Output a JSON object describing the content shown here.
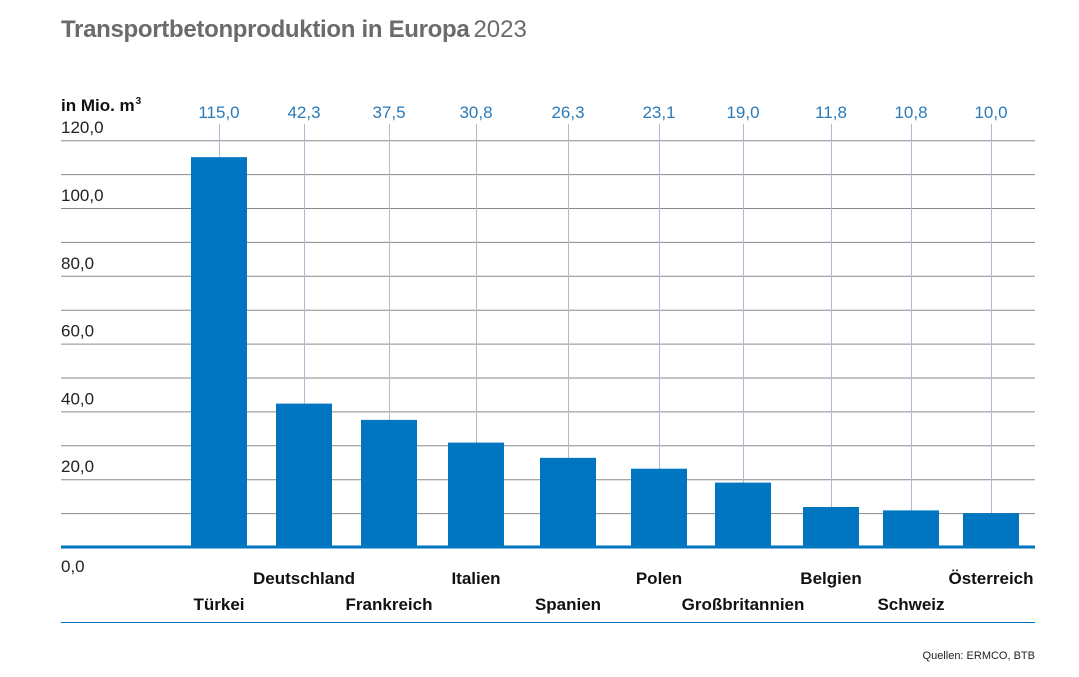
{
  "title": {
    "main": "Transportbetonproduktion in Europa",
    "year": "2023"
  },
  "unit_label": "in Mio. m",
  "unit_superscript": "3",
  "source": "Quellen: ERMCO, BTB",
  "colors": {
    "bar": "#0076c0",
    "value_label": "#2a7ab8",
    "grid": "#8a8a8a",
    "axis": "#0076c0",
    "leader": "#a9bcd3"
  },
  "chart_data": {
    "type": "bar",
    "title": "Transportbetonproduktion in Europa 2023",
    "ylabel": "in Mio. m³",
    "ylim": [
      0,
      120
    ],
    "yticks": [
      "0,0",
      "20,0",
      "40,0",
      "60,0",
      "80,0",
      "100,0",
      "120,0"
    ],
    "categories": [
      "Türkei",
      "Deutschland",
      "Frankreich",
      "Italien",
      "Spanien",
      "Polen",
      "Großbritannien",
      "Belgien",
      "Schweiz",
      "Österreich"
    ],
    "values": [
      115.0,
      42.3,
      37.5,
      30.8,
      26.3,
      23.1,
      19.0,
      11.8,
      10.8,
      10.0
    ],
    "value_labels": [
      "115,0",
      "42,3",
      "37,5",
      "30,8",
      "26,3",
      "23,1",
      "19,0",
      "11,8",
      "10,8",
      "10,0"
    ],
    "label_rows": [
      "lower",
      "upper",
      "lower",
      "upper",
      "lower",
      "upper",
      "lower",
      "upper",
      "lower",
      "upper"
    ],
    "grid": true,
    "source": "Quellen: ERMCO, BTB"
  }
}
